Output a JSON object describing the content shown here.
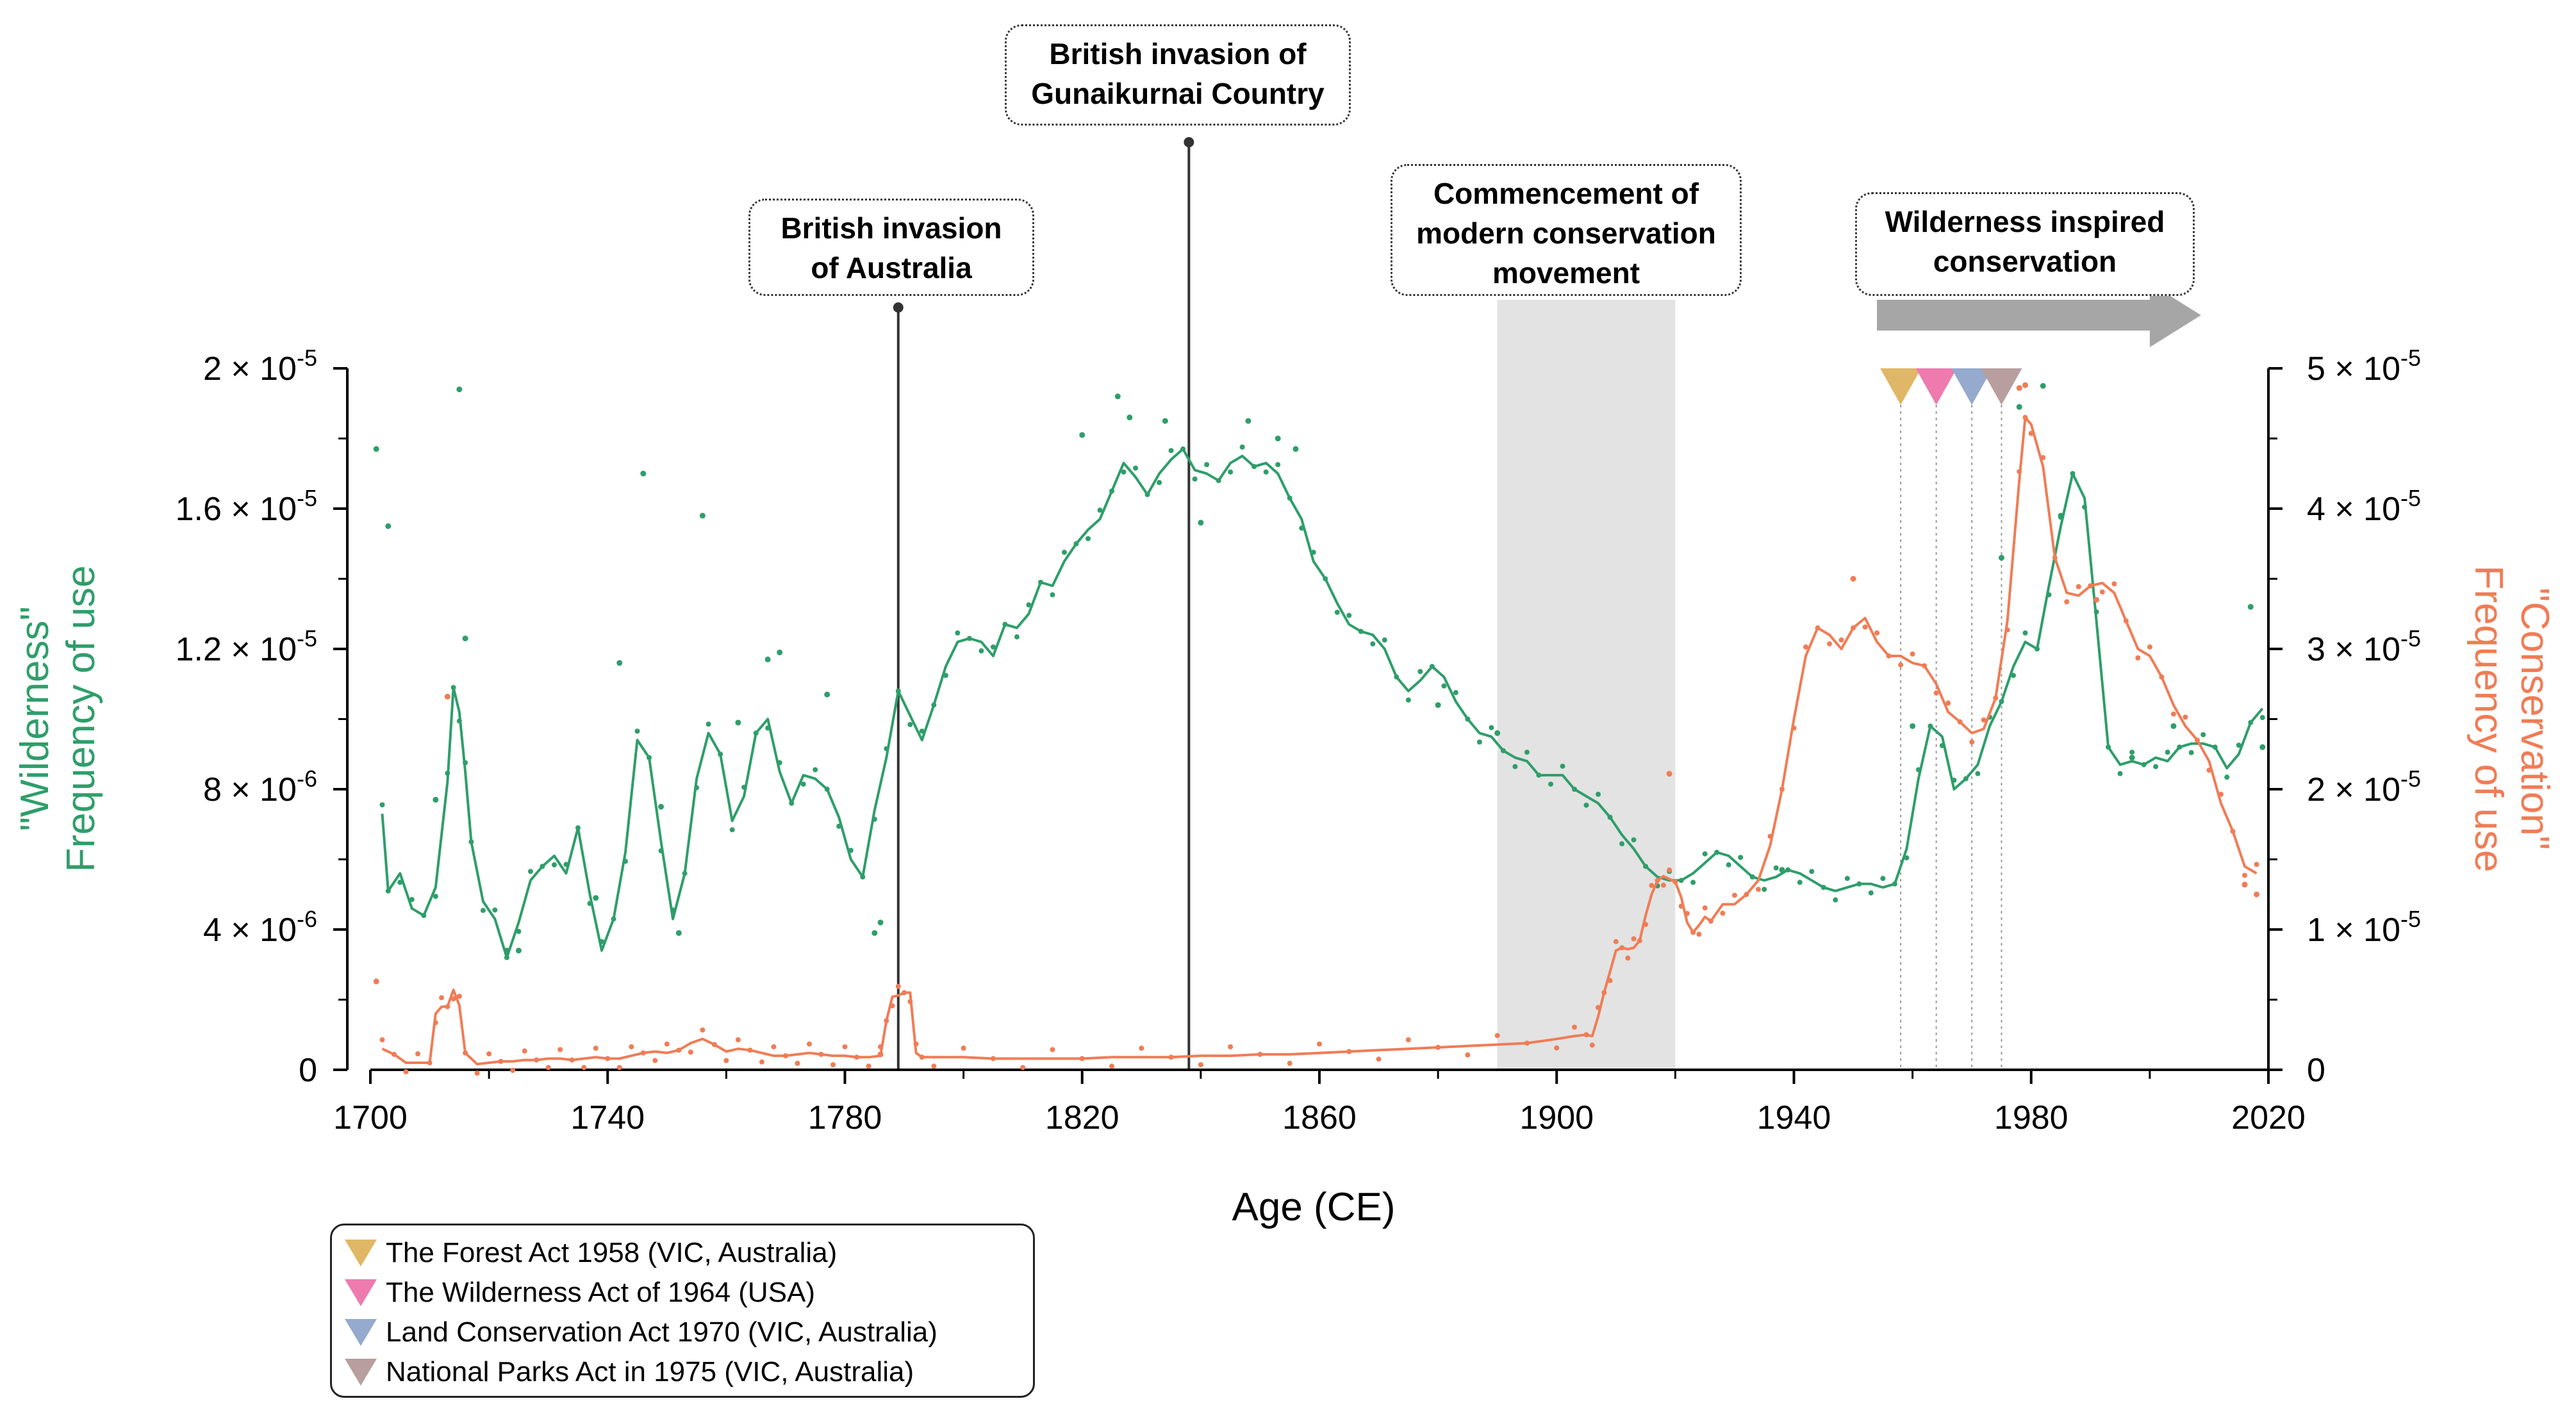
{
  "chart_data": {
    "type": "line",
    "xlabel": "Age (CE)",
    "x_ticks": [
      "1700",
      "1740",
      "1780",
      "1820",
      "1860",
      "1900",
      "1940",
      "1980",
      "2020"
    ],
    "xlim": [
      1700,
      2020
    ],
    "y_left": {
      "label_line1": "\"Wilderness\"",
      "label_line2": "Frequency of use",
      "ticks": [
        {
          "value": 0,
          "base": "0",
          "exp": ""
        },
        {
          "value": 4e-06,
          "base": "4 × 10",
          "exp": "-6"
        },
        {
          "value": 8e-06,
          "base": "8 × 10",
          "exp": "-6"
        },
        {
          "value": 1.2e-05,
          "base": "1.2 × 10",
          "exp": "-5"
        },
        {
          "value": 1.6e-05,
          "base": "1.6 × 10",
          "exp": "-5"
        },
        {
          "value": 2e-05,
          "base": "2 × 10",
          "exp": "-5"
        }
      ],
      "ylim": [
        0,
        2e-05
      ]
    },
    "y_right": {
      "label_line1": "\"Conservation\"",
      "label_line2": "Frequency of use",
      "ticks": [
        {
          "value": 0,
          "base": "0",
          "exp": ""
        },
        {
          "value": 1e-05,
          "base": "1 × 10",
          "exp": "-5"
        },
        {
          "value": 2e-05,
          "base": "2 × 10",
          "exp": "-5"
        },
        {
          "value": 3e-05,
          "base": "3 × 10",
          "exp": "-5"
        },
        {
          "value": 4e-05,
          "base": "4 × 10",
          "exp": "-5"
        },
        {
          "value": 5e-05,
          "base": "5 × 10",
          "exp": "-5"
        }
      ],
      "ylim": [
        0,
        5e-05
      ]
    },
    "series": [
      {
        "name": "Wilderness",
        "axis": "left",
        "color": "#2e9e6a",
        "x": [
          1702,
          1703,
          1705,
          1707,
          1709,
          1711,
          1713,
          1714,
          1715,
          1716,
          1717,
          1719,
          1721,
          1723,
          1725,
          1727,
          1729,
          1731,
          1733,
          1735,
          1737,
          1739,
          1741,
          1743,
          1745,
          1747,
          1749,
          1751,
          1753,
          1755,
          1757,
          1759,
          1761,
          1763,
          1765,
          1767,
          1769,
          1771,
          1773,
          1775,
          1777,
          1779,
          1781,
          1783,
          1785,
          1787,
          1789,
          1791,
          1793,
          1795,
          1797,
          1799,
          1801,
          1803,
          1805,
          1807,
          1809,
          1811,
          1813,
          1815,
          1817,
          1819,
          1821,
          1823,
          1825,
          1827,
          1829,
          1831,
          1833,
          1835,
          1837,
          1839,
          1841,
          1843,
          1845,
          1847,
          1849,
          1851,
          1853,
          1855,
          1857,
          1859,
          1861,
          1863,
          1865,
          1867,
          1869,
          1871,
          1873,
          1875,
          1877,
          1879,
          1881,
          1883,
          1885,
          1887,
          1889,
          1891,
          1893,
          1895,
          1897,
          1899,
          1901,
          1903,
          1905,
          1907,
          1909,
          1911,
          1913,
          1915,
          1917,
          1919,
          1921,
          1923,
          1925,
          1927,
          1929,
          1931,
          1933,
          1935,
          1937,
          1939,
          1941,
          1943,
          1945,
          1947,
          1949,
          1951,
          1953,
          1955,
          1957,
          1959,
          1961,
          1963,
          1965,
          1967,
          1969,
          1971,
          1973,
          1975,
          1977,
          1979,
          1981,
          1983,
          1985,
          1987,
          1989,
          1991,
          1993,
          1995,
          1997,
          1999,
          2001,
          2003,
          2005,
          2007,
          2009,
          2011,
          2013,
          2015,
          2017,
          2019
        ],
        "values": [
          7.3e-06,
          5.1e-06,
          5.6e-06,
          4.6e-06,
          4.4e-06,
          5.2e-06,
          8.2e-06,
          1.09e-05,
          1.02e-05,
          8.5e-06,
          6.5e-06,
          4.8e-06,
          4.3e-06,
          3.2e-06,
          4.2e-06,
          5.4e-06,
          5.8e-06,
          6.1e-06,
          5.6e-06,
          6.9e-06,
          5e-06,
          3.4e-06,
          4.3e-06,
          6.2e-06,
          9.4e-06,
          8.9e-06,
          6.5e-06,
          4.3e-06,
          5.6e-06,
          8.3e-06,
          9.6e-06,
          9e-06,
          7.1e-06,
          7.8e-06,
          9.6e-06,
          1e-05,
          8.5e-06,
          7.6e-06,
          8.4e-06,
          8.3e-06,
          8e-06,
          7.2e-06,
          6e-06,
          5.5e-06,
          7.4e-06,
          8.9e-06,
          1.08e-05,
          1.01e-05,
          9.4e-06,
          1.04e-05,
          1.15e-05,
          1.22e-05,
          1.23e-05,
          1.22e-05,
          1.18e-05,
          1.27e-05,
          1.26e-05,
          1.3e-05,
          1.39e-05,
          1.38e-05,
          1.45e-05,
          1.5e-05,
          1.54e-05,
          1.57e-05,
          1.65e-05,
          1.73e-05,
          1.69e-05,
          1.64e-05,
          1.7e-05,
          1.74e-05,
          1.77e-05,
          1.71e-05,
          1.7e-05,
          1.68e-05,
          1.73e-05,
          1.75e-05,
          1.72e-05,
          1.73e-05,
          1.7e-05,
          1.63e-05,
          1.57e-05,
          1.45e-05,
          1.4e-05,
          1.33e-05,
          1.27e-05,
          1.25e-05,
          1.24e-05,
          1.2e-05,
          1.12e-05,
          1.08e-05,
          1.11e-05,
          1.15e-05,
          1.12e-05,
          1.05e-05,
          1e-05,
          9.6e-06,
          9.5e-06,
          9.1e-06,
          8.9e-06,
          8.8e-06,
          8.4e-06,
          8.4e-06,
          8.4e-06,
          8e-06,
          7.8e-06,
          7.6e-06,
          7.2e-06,
          6.7e-06,
          6.3e-06,
          5.8e-06,
          5.5e-06,
          5.4e-06,
          5.4e-06,
          5.6e-06,
          5.9e-06,
          6.2e-06,
          6.1e-06,
          5.8e-06,
          5.5e-06,
          5.4e-06,
          5.5e-06,
          5.7e-06,
          5.6e-06,
          5.4e-06,
          5.2e-06,
          5.1e-06,
          5.2e-06,
          5.3e-06,
          5.3e-06,
          5.2e-06,
          5.3e-06,
          6.3e-06,
          8.3e-06,
          9.8e-06,
          9.5e-06,
          8e-06,
          8.3e-06,
          8.7e-06,
          9.8e-06,
          1.05e-05,
          1.15e-05,
          1.22e-05,
          1.2e-05,
          1.38e-05,
          1.55e-05,
          1.7e-05,
          1.63e-05,
          1.28e-05,
          9.2e-06,
          8.7e-06,
          8.8e-06,
          8.7e-06,
          8.9e-06,
          8.8e-06,
          9.2e-06,
          9.3e-06,
          9.3e-06,
          9.2e-06,
          8.6e-06,
          9e-06,
          9.9e-06,
          1.03e-05
        ]
      },
      {
        "name": "Conservation",
        "axis": "right",
        "color": "#f07c55",
        "x": [
          1702,
          1704,
          1706,
          1708,
          1710,
          1711,
          1712,
          1713,
          1714,
          1715,
          1716,
          1718,
          1720,
          1722,
          1724,
          1726,
          1728,
          1730,
          1732,
          1734,
          1736,
          1738,
          1740,
          1742,
          1744,
          1746,
          1748,
          1750,
          1752,
          1754,
          1756,
          1758,
          1760,
          1762,
          1764,
          1766,
          1768,
          1770,
          1772,
          1774,
          1776,
          1778,
          1780,
          1782,
          1784,
          1786,
          1787,
          1788,
          1789,
          1790,
          1791,
          1792,
          1793,
          1795,
          1800,
          1805,
          1810,
          1815,
          1820,
          1825,
          1830,
          1835,
          1840,
          1845,
          1850,
          1855,
          1860,
          1865,
          1870,
          1875,
          1880,
          1885,
          1890,
          1895,
          1900,
          1903,
          1905,
          1906,
          1907,
          1908,
          1909,
          1910,
          1911,
          1912,
          1913,
          1914,
          1915,
          1916,
          1917,
          1918,
          1919,
          1920,
          1921,
          1922,
          1923,
          1924,
          1925,
          1926,
          1928,
          1930,
          1932,
          1934,
          1936,
          1938,
          1940,
          1942,
          1944,
          1946,
          1948,
          1950,
          1952,
          1954,
          1956,
          1958,
          1960,
          1962,
          1964,
          1966,
          1968,
          1970,
          1972,
          1974,
          1976,
          1978,
          1979,
          1980,
          1982,
          1984,
          1986,
          1988,
          1990,
          1992,
          1994,
          1996,
          1998,
          2000,
          2002,
          2004,
          2006,
          2008,
          2010,
          2012,
          2014,
          2016,
          2018
        ],
        "values": [
          1.5e-06,
          1.1e-06,
          5e-07,
          5e-07,
          5e-07,
          4e-06,
          4.5e-06,
          4.5e-06,
          5.7e-06,
          4.6e-06,
          1.2e-06,
          4e-07,
          5e-07,
          6e-07,
          6e-07,
          7e-07,
          7e-07,
          8e-07,
          8e-07,
          7e-07,
          8e-07,
          9e-07,
          8e-07,
          8e-07,
          1e-06,
          1.2e-06,
          1.3e-06,
          1.2e-06,
          1.4e-06,
          1.9e-06,
          2.2e-06,
          1.8e-06,
          1.3e-06,
          1.5e-06,
          1.4e-06,
          1.2e-06,
          1e-06,
          1e-06,
          1.1e-06,
          1.2e-06,
          1.1e-06,
          1e-06,
          1e-06,
          9e-07,
          9e-07,
          1e-06,
          3.5e-06,
          5.2e-06,
          5.3e-06,
          5.5e-06,
          5.5e-06,
          1.2e-06,
          9e-07,
          9e-07,
          9e-07,
          8e-07,
          8e-07,
          8e-07,
          8e-07,
          9e-07,
          9e-07,
          9e-07,
          1e-06,
          1e-06,
          1.1e-06,
          1.1e-06,
          1.2e-06,
          1.3e-06,
          1.4e-06,
          1.5e-06,
          1.6e-06,
          1.7e-06,
          1.8e-06,
          1.9e-06,
          2.2e-06,
          2.4e-06,
          2.5e-06,
          2.4e-06,
          3.8e-06,
          5.5e-06,
          7e-06,
          8.5e-06,
          8.7e-06,
          8.6e-06,
          8.7e-06,
          9.2e-06,
          1.1e-05,
          1.25e-05,
          1.35e-05,
          1.38e-05,
          1.36e-05,
          1.34e-05,
          1.23e-05,
          1.05e-05,
          9.8e-06,
          1.03e-05,
          1.09e-05,
          1.06e-05,
          1.18e-05,
          1.18e-05,
          1.25e-05,
          1.35e-05,
          1.6e-05,
          2e-05,
          2.5e-05,
          2.95e-05,
          3.15e-05,
          3.1e-05,
          3e-05,
          3.15e-05,
          3.22e-05,
          3.05e-05,
          2.95e-05,
          2.95e-05,
          2.9e-05,
          2.88e-05,
          2.75e-05,
          2.55e-05,
          2.48e-05,
          2.4e-05,
          2.43e-05,
          2.65e-05,
          3.2e-05,
          4.2e-05,
          4.65e-05,
          4.6e-05,
          4.3e-05,
          3.65e-05,
          3.4e-05,
          3.38e-05,
          3.45e-05,
          3.47e-05,
          3.4e-05,
          3.2e-05,
          3e-05,
          2.95e-05,
          2.8e-05,
          2.6e-05,
          2.45e-05,
          2.35e-05,
          2.2e-05,
          1.9e-05,
          1.7e-05,
          1.45e-05,
          1.4e-05
        ]
      }
    ],
    "scatter_points": {
      "wilderness": [
        [
          1701,
          1.77e-05
        ],
        [
          1703,
          1.55e-05
        ],
        [
          1711,
          7.7e-06
        ],
        [
          1715,
          1.94e-05
        ],
        [
          1716,
          1.23e-05
        ],
        [
          1723,
          3.4e-06
        ],
        [
          1725,
          3.4e-06
        ],
        [
          1738,
          4.9e-06
        ],
        [
          1742,
          1.16e-05
        ],
        [
          1746,
          1.7e-05
        ],
        [
          1749,
          7.5e-06
        ],
        [
          1752,
          3.9e-06
        ],
        [
          1756,
          1.58e-05
        ],
        [
          1762,
          9.9e-06
        ],
        [
          1767,
          1.17e-05
        ],
        [
          1769,
          1.19e-05
        ],
        [
          1777,
          1.07e-05
        ],
        [
          1785,
          3.9e-06
        ],
        [
          1786,
          4.2e-06
        ],
        [
          1820,
          1.81e-05
        ],
        [
          1826,
          1.92e-05
        ],
        [
          1828,
          1.86e-05
        ],
        [
          1834,
          1.85e-05
        ],
        [
          1840,
          1.56e-05
        ],
        [
          1848,
          1.85e-05
        ],
        [
          1853,
          1.8e-05
        ],
        [
          1856,
          1.77e-05
        ],
        [
          1880,
          1.04e-05
        ],
        [
          1890,
          9.6e-06
        ],
        [
          1938,
          5.7e-06
        ],
        [
          1960,
          9.8e-06
        ],
        [
          1975,
          1.46e-05
        ],
        [
          1978,
          1.89e-05
        ],
        [
          1982,
          1.95e-05
        ],
        [
          1985,
          1.58e-05
        ],
        [
          1997,
          8.9e-06
        ],
        [
          2004,
          9.8e-06
        ],
        [
          2017,
          1.32e-05
        ],
        [
          2019,
          9.2e-06
        ]
      ],
      "conservation": [
        [
          1701,
          6.3e-06
        ],
        [
          1713,
          2.66e-05
        ],
        [
          1786,
          1.1e-06
        ],
        [
          1919,
          2.11e-05
        ],
        [
          1950,
          3.5e-05
        ],
        [
          1978,
          4.86e-05
        ],
        [
          1979,
          4.88e-05
        ],
        [
          1991,
          3.35e-05
        ],
        [
          2016,
          1.32e-05
        ],
        [
          2018,
          1.25e-05
        ]
      ]
    },
    "annotations": [
      {
        "x": 1789,
        "line1": "British invasion",
        "line2": "of Australia"
      },
      {
        "x": 1838,
        "line1": "British invasion of",
        "line2": "Gunaikurnai Country"
      },
      {
        "x": 1905,
        "line1": "Commencement of",
        "line2": "modern conservation",
        "line3": "movement",
        "shade_x0": 1890,
        "shade_x1": 1920
      },
      {
        "x": 1985,
        "line1": "Wilderness inspired",
        "line2": "conservation",
        "arrow_x0": 1954,
        "arrow_x1": 2000
      }
    ],
    "events": [
      {
        "year": 1958,
        "color": "#e0b766",
        "label": "The Forest Act 1958 (VIC, Australia)"
      },
      {
        "year": 1964,
        "color": "#ee7aae",
        "label": "The Wilderness Act of 1964 (USA)"
      },
      {
        "year": 1970,
        "color": "#95aacc",
        "label": "Land Conservation Act 1970  (VIC, Australia)"
      },
      {
        "year": 1975,
        "color": "#b89e9e",
        "label": "National Parks Act in 1975 (VIC, Australia)"
      }
    ]
  }
}
